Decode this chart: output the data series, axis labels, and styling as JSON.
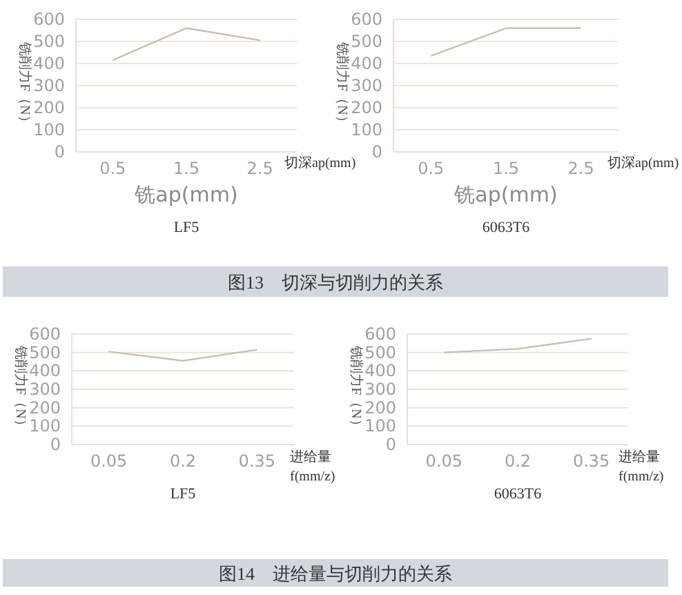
{
  "chart_data": [
    {
      "type": "line",
      "ylabel": "铣削力F（N）",
      "xlabel": "切深ap(mm)",
      "subtitle": "LF5",
      "annotations": [
        "铣ap(mm)"
      ],
      "categories": [
        "0.5",
        "1.5",
        "2.5"
      ],
      "values": [
        415,
        560,
        505
      ],
      "color": "#c8c0b0",
      "ylim": [
        0,
        600
      ],
      "yticks": [
        0,
        100,
        200,
        300,
        400,
        500,
        600
      ],
      "grid": "y"
    },
    {
      "type": "line",
      "ylabel": "铣削力F（N）",
      "xlabel": "切深ap(mm)",
      "subtitle": "6063T6",
      "annotations": [
        "铣ap(mm)"
      ],
      "categories": [
        "0.5",
        "1.5",
        "2.5"
      ],
      "values": [
        435,
        560,
        560
      ],
      "color": "#c8c0b0",
      "ylim": [
        0,
        600
      ],
      "yticks": [
        0,
        100,
        200,
        300,
        400,
        500,
        600
      ],
      "grid": "y"
    },
    {
      "type": "other",
      "title": "图13　切深与切削力的关系"
    },
    {
      "type": "line",
      "ylabel": "铣削力F（N）",
      "xlabel": "进给量 f(mm/z)",
      "subtitle": "LF5",
      "categories": [
        "0.05",
        "0.2",
        "0.35"
      ],
      "values": [
        505,
        455,
        515
      ],
      "color": "#c8c0b0",
      "ylim": [
        0,
        600
      ],
      "yticks": [
        0,
        100,
        200,
        300,
        400,
        500,
        600
      ],
      "grid": "y"
    },
    {
      "type": "line",
      "ylabel": "铣削力F（N）",
      "xlabel": "进给量 f(mm/z)",
      "subtitle": "6063T6",
      "categories": [
        "0.05",
        "0.2",
        "0.35"
      ],
      "values": [
        500,
        520,
        575
      ],
      "color": "#c8c0b0",
      "ylim": [
        0,
        600
      ],
      "yticks": [
        0,
        100,
        200,
        300,
        400,
        500,
        600
      ],
      "grid": "y"
    },
    {
      "type": "other",
      "title": "图14　进给量与切削力的关系"
    }
  ]
}
